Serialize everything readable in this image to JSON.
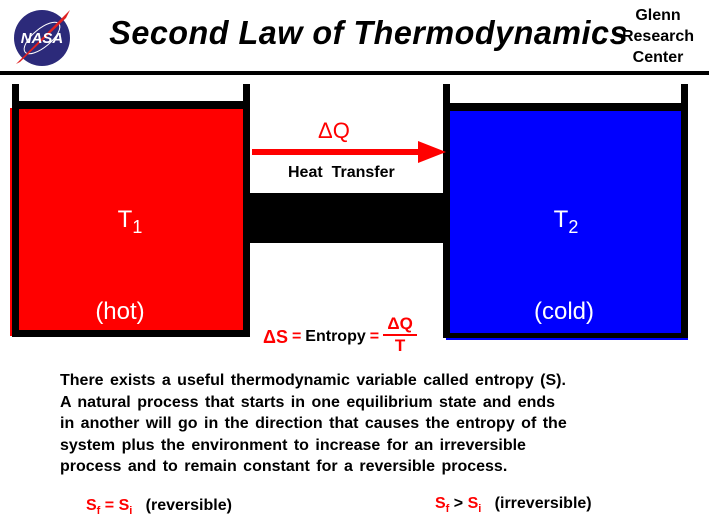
{
  "header": {
    "title": "Second Law of Thermodynamics",
    "org_lines": [
      "Glenn",
      "Research",
      "Center"
    ],
    "logo_text": "NASA"
  },
  "hot": {
    "symbol": "T",
    "subscript": "1",
    "label": "(hot)",
    "color": "#ff0000"
  },
  "cold": {
    "symbol": "T",
    "subscript": "2",
    "label": "(cold)",
    "color": "#0000ff"
  },
  "transfer": {
    "delta_q": "ΔQ",
    "label": "Heat  Transfer"
  },
  "entropy": {
    "lhs": "ΔS",
    "eq1": "=",
    "word": "Entropy",
    "eq2": "=",
    "num": "ΔQ",
    "den": "T"
  },
  "paragraph": [
    "There exists a useful thermodynamic variable called entropy (S).",
    "A natural process that starts in one equilibrium state and ends",
    "in another will go in the direction that causes the entropy of the",
    "system plus the environment to increase for an irreversible",
    "process and to remain constant for a reversible process."
  ],
  "relations": [
    {
      "lhs": "S",
      "lsub": "f",
      "op": "=",
      "rhs": "S",
      "rsub": "i",
      "note": "(reversible)"
    },
    {
      "lhs": "S",
      "lsub": "f",
      "op": ">",
      "rhs": "S",
      "rsub": "i",
      "note": "(irreversible)"
    }
  ]
}
